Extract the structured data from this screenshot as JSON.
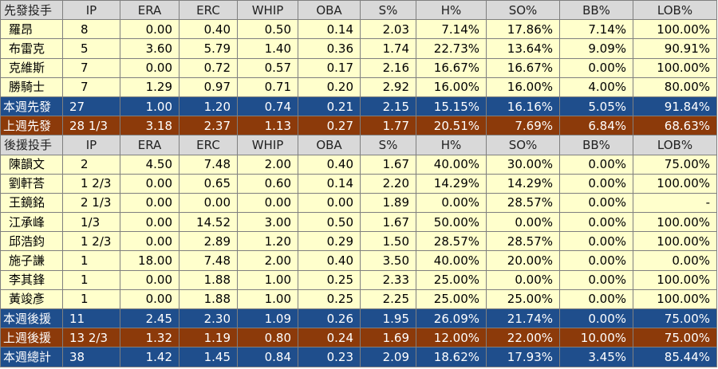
{
  "columns": [
    "IP",
    "ERA",
    "ERC",
    "WHIP",
    "OBA",
    "S%",
    "H%",
    "SO%",
    "BB%",
    "LOB%"
  ],
  "starters": {
    "header_label": "先發投手",
    "rows": [
      [
        "羅昂",
        "8",
        "0.00",
        "0.40",
        "0.50",
        "0.14",
        "2.03",
        "7.14%",
        "17.86%",
        "7.14%",
        "100.00%"
      ],
      [
        "布雷克",
        "5",
        "3.60",
        "5.79",
        "1.40",
        "0.36",
        "1.74",
        "22.73%",
        "13.64%",
        "9.09%",
        "90.91%"
      ],
      [
        "克維斯",
        "7",
        "0.00",
        "0.72",
        "0.57",
        "0.17",
        "2.16",
        "16.67%",
        "16.67%",
        "0.00%",
        "100.00%"
      ],
      [
        "勝騎士",
        "7",
        "1.29",
        "0.97",
        "0.71",
        "0.20",
        "2.92",
        "16.00%",
        "16.00%",
        "4.00%",
        "80.00%"
      ]
    ],
    "this_week": [
      "本週先發",
      "27",
      "1.00",
      "1.20",
      "0.74",
      "0.21",
      "2.15",
      "15.15%",
      "16.16%",
      "5.05%",
      "91.84%"
    ],
    "last_week": [
      "上週先發",
      "28 1/3",
      "3.18",
      "2.37",
      "1.13",
      "0.27",
      "1.77",
      "20.51%",
      "7.69%",
      "6.84%",
      "68.63%"
    ]
  },
  "relievers": {
    "header_label": "後援投手",
    "rows": [
      [
        "陳韻文",
        "2",
        "4.50",
        "7.48",
        "2.00",
        "0.40",
        "1.67",
        "40.00%",
        "30.00%",
        "0.00%",
        "75.00%"
      ],
      [
        "劉軒荅",
        "1 2/3",
        "0.00",
        "0.65",
        "0.60",
        "0.14",
        "2.20",
        "14.29%",
        "14.29%",
        "0.00%",
        "100.00%"
      ],
      [
        "王鏡銘",
        "2 1/3",
        "0.00",
        "0.00",
        "0.00",
        "0.00",
        "1.89",
        "0.00%",
        "28.57%",
        "0.00%",
        "-"
      ],
      [
        "江承峰",
        "1/3",
        "0.00",
        "14.52",
        "3.00",
        "0.50",
        "1.67",
        "50.00%",
        "0.00%",
        "0.00%",
        "100.00%"
      ],
      [
        "邱浩鈞",
        "1 2/3",
        "0.00",
        "2.89",
        "1.20",
        "0.29",
        "1.50",
        "28.57%",
        "28.57%",
        "0.00%",
        "100.00%"
      ],
      [
        "施子謙",
        "1",
        "18.00",
        "7.48",
        "2.00",
        "0.40",
        "3.50",
        "40.00%",
        "20.00%",
        "0.00%",
        "0.00%"
      ],
      [
        "李其鋒",
        "1",
        "0.00",
        "1.88",
        "1.00",
        "0.25",
        "2.33",
        "25.00%",
        "0.00%",
        "0.00%",
        "100.00%"
      ],
      [
        "黃竣彥",
        "1",
        "0.00",
        "1.88",
        "1.00",
        "0.25",
        "2.25",
        "25.00%",
        "25.00%",
        "0.00%",
        "100.00%"
      ]
    ],
    "this_week": [
      "本週後援",
      "11",
      "2.45",
      "2.30",
      "1.09",
      "0.26",
      "1.95",
      "26.09%",
      "21.74%",
      "0.00%",
      "75.00%"
    ],
    "last_week": [
      "上週後援",
      "13 2/3",
      "1.32",
      "1.19",
      "0.80",
      "0.24",
      "1.69",
      "12.00%",
      "22.00%",
      "10.00%",
      "75.00%"
    ]
  },
  "total": [
    "本週總計",
    "38",
    "1.42",
    "1.45",
    "0.84",
    "0.23",
    "2.09",
    "18.62%",
    "17.93%",
    "3.45%",
    "85.44%"
  ],
  "colors": {
    "header_bg": "#d9d9d9",
    "row_bg": "#ffffcc",
    "blue_summary": "#1f4e8c",
    "brown_summary": "#8c3a0a"
  }
}
